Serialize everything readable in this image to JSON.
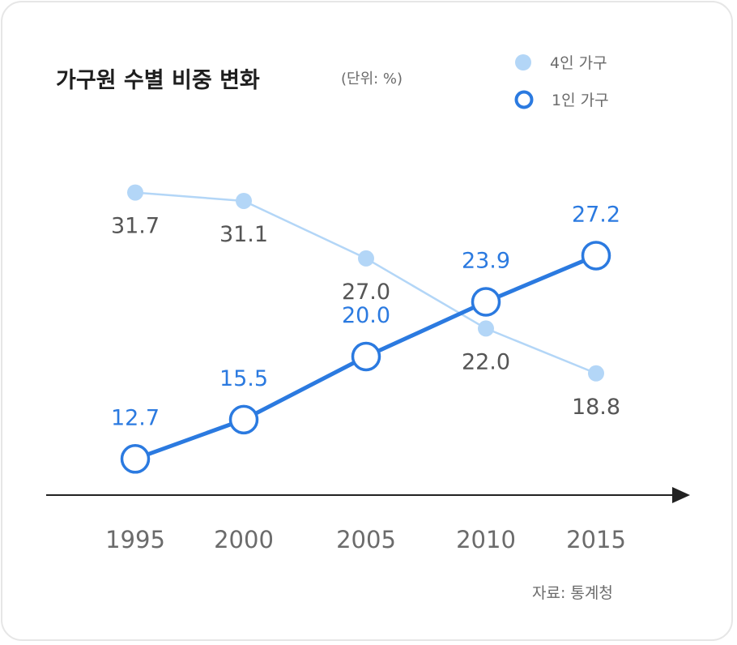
{
  "chart_data": {
    "type": "line",
    "title": "가구원 수별 비중 변화",
    "unit": "(단위: %)",
    "categories": [
      "1995",
      "2000",
      "2005",
      "2010",
      "2015"
    ],
    "series": [
      {
        "name": "4인 가구",
        "values": [
          31.7,
          31.1,
          27.0,
          22.0,
          18.8
        ],
        "labels": [
          "31.7",
          "31.1",
          "27.0",
          "22.0",
          "18.8"
        ],
        "color": "#b3d6f7"
      },
      {
        "name": "1인 가구",
        "values": [
          12.7,
          15.5,
          20.0,
          23.9,
          27.2
        ],
        "labels": [
          "12.7",
          "15.5",
          "20.0",
          "23.9",
          "27.2"
        ],
        "color": "#2b7ae0"
      }
    ],
    "source": "자료: 통계청",
    "legend": "top-right",
    "grid": false
  }
}
